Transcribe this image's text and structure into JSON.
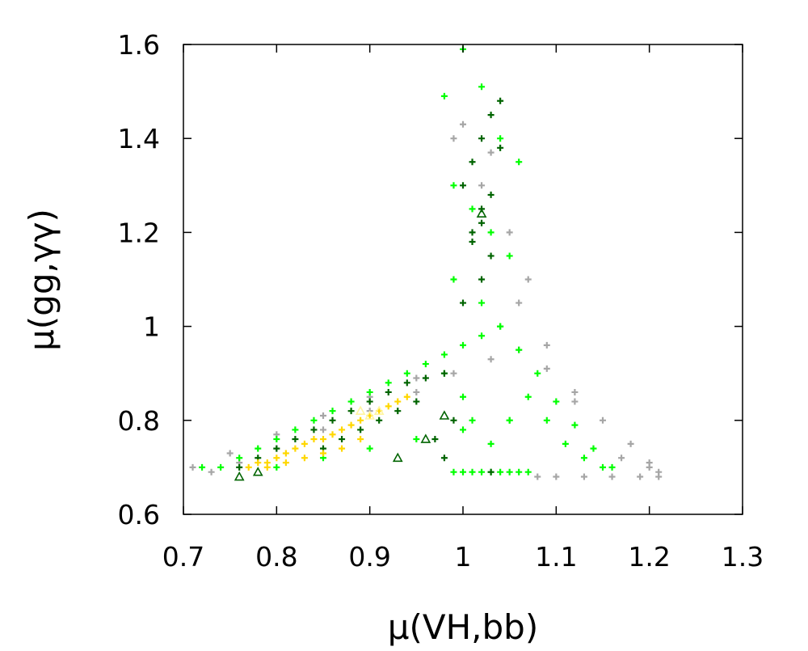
{
  "chart_data": {
    "type": "scatter",
    "xlabel": "μ(VH,bb)",
    "ylabel": "μ(gg,γγ)",
    "xlim": [
      0.7,
      1.3
    ],
    "ylim": [
      0.6,
      1.6
    ],
    "xticks": [
      "0.7",
      "0.8",
      "0.9",
      "1",
      "1.1",
      "1.2",
      "1.3"
    ],
    "yticks": [
      "0.6",
      "0.8",
      "1",
      "1.2",
      "1.4",
      "1.6"
    ],
    "grid": false,
    "legend": "none",
    "colors": {
      "gray": "#a6a6a6",
      "bright_green": "#00ff00",
      "dark_green": "#006400",
      "yellow": "#ffd700",
      "light_yellow": "#fff5a0"
    },
    "series": [
      {
        "color": "gray",
        "marker": "plus",
        "x": [
          0.71,
          0.73,
          0.76,
          0.8,
          0.85,
          0.9,
          0.95,
          0.99,
          1.03,
          1.06,
          1.09,
          1.12,
          1.15,
          1.18,
          1.2,
          1.21,
          1.21,
          1.19,
          1.16,
          1.13,
          1.1,
          1.08,
          1.07,
          1.05,
          1.02,
          0.99,
          0.95,
          0.9,
          0.85,
          0.8,
          0.75,
          1.0,
          1.03,
          1.06,
          1.09,
          1.12,
          1.17,
          1.2
        ],
        "y": [
          0.7,
          0.69,
          0.71,
          0.74,
          0.78,
          0.82,
          0.86,
          0.9,
          0.93,
          0.95,
          0.91,
          0.86,
          0.8,
          0.75,
          0.71,
          0.69,
          0.68,
          0.68,
          0.68,
          0.68,
          0.68,
          0.68,
          1.1,
          1.2,
          1.3,
          1.4,
          0.89,
          0.85,
          0.81,
          0.77,
          0.73,
          1.43,
          1.37,
          1.05,
          0.96,
          0.84,
          0.72,
          0.7
        ]
      },
      {
        "color": "bright_green",
        "marker": "plus",
        "x": [
          0.72,
          0.74,
          0.76,
          0.78,
          0.8,
          0.82,
          0.84,
          0.86,
          0.88,
          0.9,
          0.92,
          0.94,
          0.96,
          0.98,
          1.0,
          1.02,
          1.04,
          1.06,
          1.08,
          1.1,
          1.12,
          1.14,
          1.16,
          0.99,
          1.0,
          1.01,
          1.02,
          1.03,
          1.04,
          1.05,
          1.06,
          1.07,
          0.98,
          1.0,
          1.02,
          1.04,
          1.06,
          0.99,
          1.01,
          1.03,
          1.05,
          0.99,
          1.02,
          1.04,
          0.98,
          1.0,
          1.01,
          1.03,
          1.05,
          1.07,
          1.09,
          1.11,
          1.13,
          1.15,
          0.8,
          0.85,
          0.9,
          0.95,
          1.0,
          1.05
        ],
        "y": [
          0.7,
          0.7,
          0.72,
          0.74,
          0.76,
          0.78,
          0.8,
          0.82,
          0.84,
          0.86,
          0.88,
          0.9,
          0.92,
          0.94,
          0.96,
          0.98,
          1.0,
          0.95,
          0.9,
          0.84,
          0.79,
          0.74,
          0.7,
          0.69,
          0.69,
          0.69,
          0.69,
          0.69,
          0.69,
          0.69,
          0.69,
          0.69,
          1.49,
          1.59,
          1.51,
          1.4,
          1.35,
          1.3,
          1.25,
          1.2,
          1.15,
          1.1,
          1.05,
          1.0,
          0.9,
          0.85,
          0.8,
          0.75,
          0.8,
          0.85,
          0.8,
          0.75,
          0.72,
          0.7,
          0.7,
          0.72,
          0.74,
          0.76,
          0.78,
          0.8
        ]
      },
      {
        "color": "dark_green",
        "marker": "plus",
        "x": [
          0.76,
          0.78,
          0.8,
          0.82,
          0.84,
          0.86,
          0.88,
          0.9,
          0.92,
          0.94,
          0.96,
          0.98,
          0.95,
          0.93,
          0.91,
          0.89,
          0.87,
          0.85,
          1.0,
          1.01,
          1.02,
          1.03,
          1.04,
          1.02,
          1.01,
          1.03,
          1.02,
          1.0,
          1.04,
          1.03,
          1.02,
          1.01,
          0.99,
          0.97,
          1.03,
          0.98
        ],
        "y": [
          0.7,
          0.72,
          0.74,
          0.76,
          0.78,
          0.8,
          0.82,
          0.84,
          0.86,
          0.88,
          0.89,
          0.9,
          0.84,
          0.82,
          0.8,
          0.78,
          0.76,
          0.74,
          1.3,
          1.35,
          1.4,
          1.45,
          1.38,
          1.25,
          1.2,
          1.15,
          1.1,
          1.05,
          1.48,
          1.28,
          1.22,
          1.18,
          0.8,
          0.76,
          0.69,
          0.72
        ]
      },
      {
        "color": "yellow",
        "marker": "plus",
        "x": [
          0.77,
          0.78,
          0.79,
          0.8,
          0.81,
          0.82,
          0.83,
          0.84,
          0.85,
          0.86,
          0.87,
          0.88,
          0.89,
          0.9,
          0.91,
          0.92,
          0.93,
          0.94,
          0.79,
          0.81,
          0.83,
          0.85,
          0.87,
          0.89
        ],
        "y": [
          0.7,
          0.71,
          0.71,
          0.72,
          0.73,
          0.74,
          0.75,
          0.76,
          0.76,
          0.77,
          0.78,
          0.79,
          0.8,
          0.81,
          0.82,
          0.83,
          0.84,
          0.85,
          0.7,
          0.71,
          0.72,
          0.73,
          0.74,
          0.76
        ]
      },
      {
        "color": "light_yellow",
        "marker": "triangle",
        "x": [
          0.89,
          0.9,
          0.91
        ],
        "y": [
          0.82,
          0.81,
          0.82
        ]
      },
      {
        "color": "dark_green",
        "marker": "triangle",
        "x": [
          0.76,
          0.78,
          0.93,
          0.96,
          0.98,
          1.02
        ],
        "y": [
          0.68,
          0.69,
          0.72,
          0.76,
          0.81,
          1.24
        ]
      }
    ]
  }
}
